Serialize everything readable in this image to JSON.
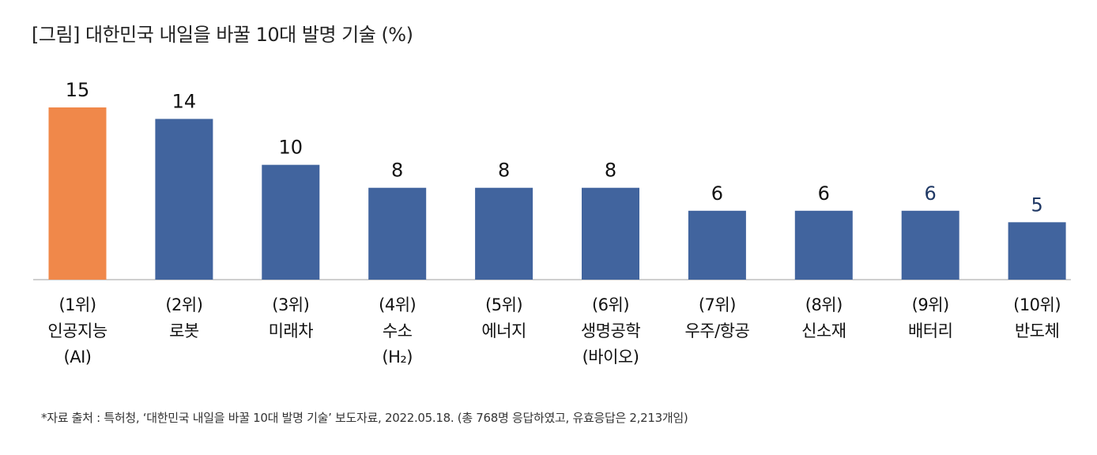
{
  "title": "[그림] 대한민국 내일을 바꿀 10대 발명 기술 (%)",
  "footnote": "*자료 출처 : 특허청, ‘대한민국 내일을 바꿀 10대 발명 기술’ 보도자료, 2022.05.18. (총 768명 응답하였고, 유효응답은 2,213개임)",
  "chart_data": {
    "type": "bar",
    "title": "[그림] 대한민국 내일을 바꿀 10대 발명 기술 (%)",
    "categories": [
      [
        "(1위)",
        "인공지능",
        "(AI)"
      ],
      [
        "(2위)",
        "로봇"
      ],
      [
        "(3위)",
        "미래차"
      ],
      [
        "(4위)",
        "수소",
        "(H₂)"
      ],
      [
        "(5위)",
        "에너지"
      ],
      [
        "(6위)",
        "생명공학",
        "(바이오)"
      ],
      [
        "(7위)",
        "우주/항공"
      ],
      [
        "(8위)",
        "신소재"
      ],
      [
        "(9위)",
        "배터리"
      ],
      [
        "(10위)",
        "반도체"
      ]
    ],
    "values": [
      15,
      14,
      10,
      8,
      8,
      8,
      6,
      6,
      6,
      5
    ],
    "bar_colors": [
      "#f0884a",
      "#41649e",
      "#41649e",
      "#41649e",
      "#41649e",
      "#41649e",
      "#41649e",
      "#41649e",
      "#41649e",
      "#41649e"
    ],
    "label_colors": [
      "#111111",
      "#111111",
      "#111111",
      "#111111",
      "#111111",
      "#111111",
      "#111111",
      "#111111",
      "#1f3864",
      "#1f3864"
    ],
    "axis_color": "#bfbfbf",
    "ylim": [
      0,
      15
    ],
    "grid": false,
    "legend": "none"
  }
}
